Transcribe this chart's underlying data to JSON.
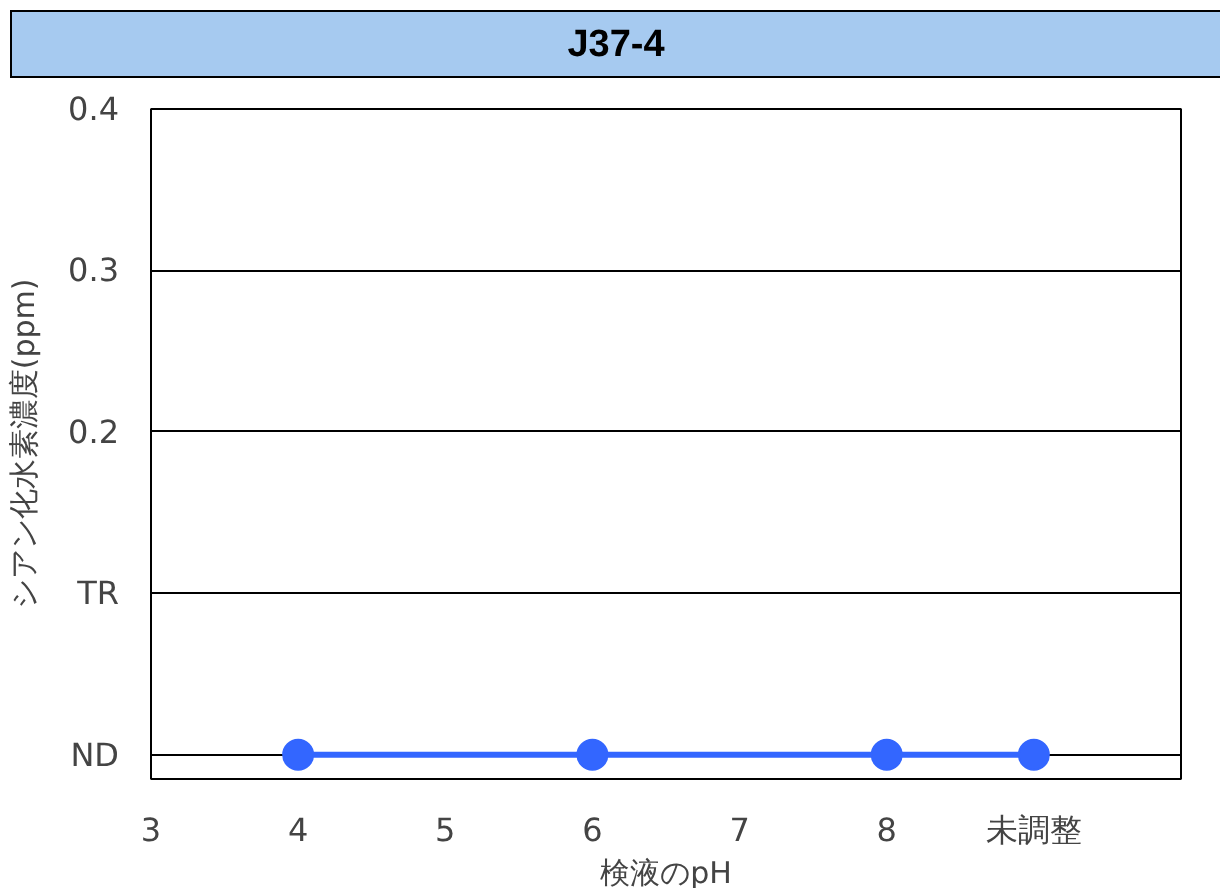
{
  "chart_data": {
    "type": "line",
    "title": "J37-4",
    "xlabel": "検液のpH",
    "ylabel": "シアン化水素濃度(ppm)",
    "x": [
      4,
      6,
      8,
      9
    ],
    "series": [
      {
        "color": "#3366ff",
        "values": [
          0,
          0,
          0,
          0
        ]
      }
    ],
    "xlim": [
      3,
      10
    ],
    "xticks": [
      3,
      4,
      5,
      6,
      7,
      8,
      {
        "value": 9,
        "label": "未調整"
      }
    ],
    "ylim": [
      -0.015,
      0.4
    ],
    "yticks": [
      {
        "value": 0,
        "label": "ND"
      },
      {
        "value": 0.1,
        "label": "TR"
      },
      0.2,
      0.3,
      0.4
    ],
    "grid": "y",
    "marker": "circle",
    "line_style": "solid"
  }
}
